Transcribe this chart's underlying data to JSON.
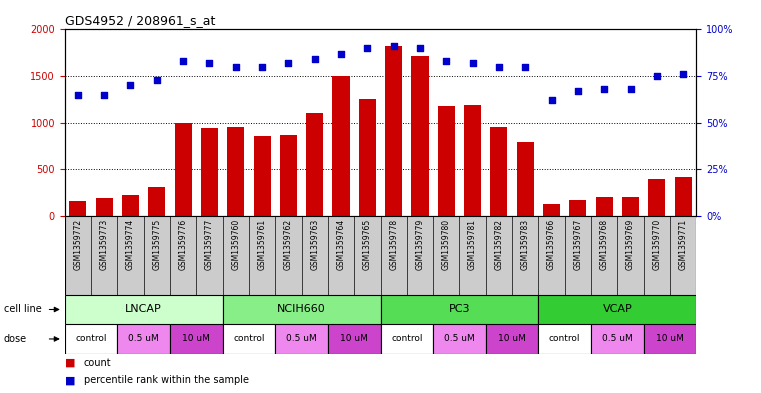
{
  "title": "GDS4952 / 208961_s_at",
  "samples": [
    "GSM1359772",
    "GSM1359773",
    "GSM1359774",
    "GSM1359775",
    "GSM1359776",
    "GSM1359777",
    "GSM1359760",
    "GSM1359761",
    "GSM1359762",
    "GSM1359763",
    "GSM1359764",
    "GSM1359765",
    "GSM1359778",
    "GSM1359779",
    "GSM1359780",
    "GSM1359781",
    "GSM1359782",
    "GSM1359783",
    "GSM1359766",
    "GSM1359767",
    "GSM1359768",
    "GSM1359769",
    "GSM1359770",
    "GSM1359771"
  ],
  "counts": [
    165,
    190,
    230,
    310,
    1000,
    940,
    960,
    860,
    870,
    1110,
    1500,
    1260,
    1820,
    1720,
    1180,
    1190,
    950,
    790,
    125,
    175,
    205,
    205,
    400,
    415
  ],
  "percentiles": [
    65,
    65,
    70,
    73,
    83,
    82,
    80,
    80,
    82,
    84,
    87,
    90,
    91,
    90,
    83,
    82,
    80,
    80,
    62,
    67,
    68,
    68,
    75,
    76
  ],
  "cell_lines": [
    {
      "name": "LNCAP",
      "start": 0,
      "end": 6,
      "color": "#ccffcc"
    },
    {
      "name": "NCIH660",
      "start": 6,
      "end": 12,
      "color": "#88ee88"
    },
    {
      "name": "PC3",
      "start": 12,
      "end": 18,
      "color": "#55dd55"
    },
    {
      "name": "VCAP",
      "start": 18,
      "end": 24,
      "color": "#33cc33"
    }
  ],
  "dose_labels_cycle": [
    "control",
    "0.5 uM",
    "10 uM"
  ],
  "dose_colors_cycle": [
    "#ffffff",
    "#ee88ee",
    "#cc44cc"
  ],
  "bar_color": "#cc0000",
  "dot_color": "#0000cc",
  "ylim_left": [
    0,
    2000
  ],
  "ylim_right": [
    0,
    100
  ],
  "yticks_left": [
    0,
    500,
    1000,
    1500,
    2000
  ],
  "yticks_right": [
    0,
    25,
    50,
    75,
    100
  ],
  "ytick_labels_left": [
    "0",
    "500",
    "1000",
    "1500",
    "2000"
  ],
  "ytick_labels_right": [
    "0%",
    "25%",
    "50%",
    "75%",
    "100%"
  ],
  "bg_color": "#ffffff",
  "sample_bg_color": "#cccccc",
  "tick_label_color_left": "#cc0000",
  "tick_label_color_right": "#0000cc",
  "legend_count_color": "#cc0000",
  "legend_pct_color": "#0000cc"
}
